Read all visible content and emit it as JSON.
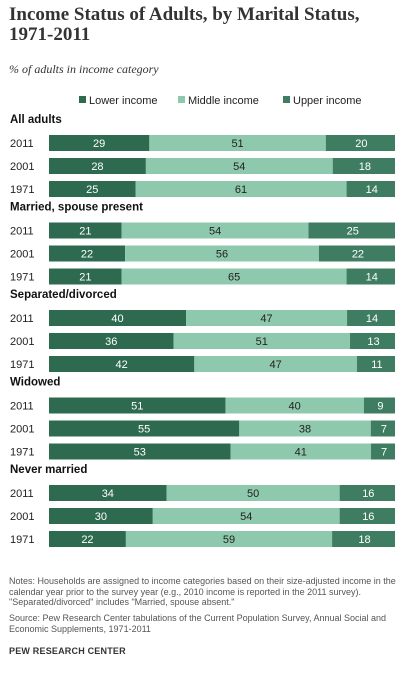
{
  "chart_data": {
    "type": "bar",
    "stacked": true,
    "orientation": "horizontal",
    "title": "Income Status of Adults, by Marital Status, 1971-2011",
    "subtitle": "% of adults in income category",
    "legend": [
      "Lower income",
      "Middle income",
      "Upper income"
    ],
    "legend_placement": "top",
    "colors": {
      "lower": "#2d6a50",
      "middle": "#8fc9ad",
      "upper": "#3f7d62"
    },
    "xlim": [
      0,
      100
    ],
    "groups": [
      {
        "name": "All adults",
        "rows": [
          {
            "year": "2011",
            "values": [
              29,
              51,
              20
            ]
          },
          {
            "year": "2001",
            "values": [
              28,
              54,
              18
            ]
          },
          {
            "year": "1971",
            "values": [
              25,
              61,
              14
            ]
          }
        ]
      },
      {
        "name": "Married, spouse present",
        "rows": [
          {
            "year": "2011",
            "values": [
              21,
              54,
              25
            ]
          },
          {
            "year": "2001",
            "values": [
              22,
              56,
              22
            ]
          },
          {
            "year": "1971",
            "values": [
              21,
              65,
              14
            ]
          }
        ]
      },
      {
        "name": "Separated/divorced",
        "rows": [
          {
            "year": "2011",
            "values": [
              40,
              47,
              14
            ]
          },
          {
            "year": "2001",
            "values": [
              36,
              51,
              13
            ]
          },
          {
            "year": "1971",
            "values": [
              42,
              47,
              11
            ]
          }
        ]
      },
      {
        "name": "Widowed",
        "rows": [
          {
            "year": "2011",
            "values": [
              51,
              40,
              9
            ]
          },
          {
            "year": "2001",
            "values": [
              55,
              38,
              7
            ]
          },
          {
            "year": "1971",
            "values": [
              53,
              41,
              7
            ]
          }
        ]
      },
      {
        "name": "Never married",
        "rows": [
          {
            "year": "2011",
            "values": [
              34,
              50,
              16
            ]
          },
          {
            "year": "2001",
            "values": [
              30,
              54,
              16
            ]
          },
          {
            "year": "1971",
            "values": [
              22,
              59,
              18
            ]
          }
        ]
      }
    ]
  },
  "notes": "Notes: Households are assigned to income categories based on their size-adjusted income in the calendar year prior to the survey year (e.g., 2010 income is reported in the 2011 survey). \"Separated/divorced\" includes \"Married, spouse absent.\"",
  "source": "Source: Pew Research Center tabulations of the Current Population Survey, Annual Social and Economic Supplements, 1971-2011",
  "brand": "PEW RESEARCH CENTER"
}
